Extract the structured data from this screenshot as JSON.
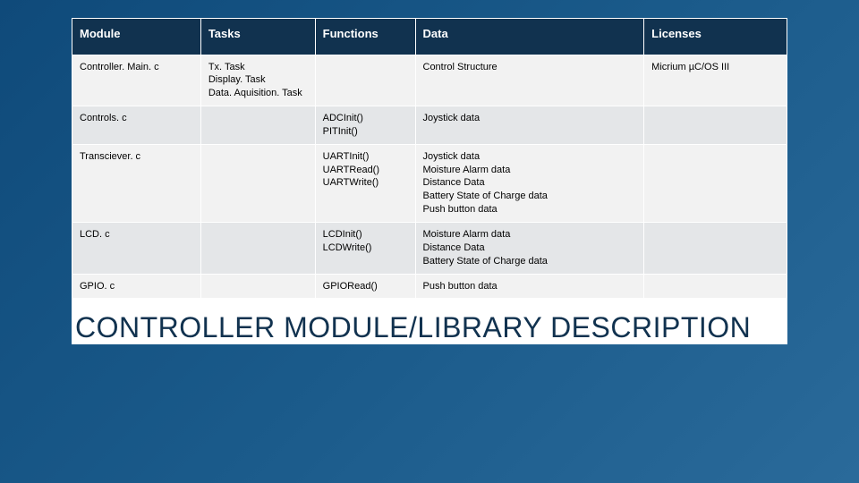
{
  "table": {
    "columns": [
      "Module",
      "Tasks",
      "Functions",
      "Data",
      "Licenses"
    ],
    "col_widths_pct": [
      18,
      16,
      14,
      32,
      20
    ],
    "header_bg": "#11324f",
    "header_fg": "#ffffff",
    "row_bg_odd": "#f2f2f2",
    "row_bg_even": "#e4e6e8",
    "border_color": "#ffffff",
    "header_fontsize": 13,
    "cell_fontsize": 11,
    "rows": [
      {
        "module": "Controller. Main. c",
        "tasks": [
          "Tx. Task",
          "Display. Task",
          "Data. Aquisition. Task"
        ],
        "functions": [],
        "data": [
          "Control Structure"
        ],
        "licenses": "Micrium µC/OS III"
      },
      {
        "module": "Controls. c",
        "tasks": [],
        "functions": [
          "ADCInit()",
          "PITInit()"
        ],
        "data": [
          "Joystick data"
        ],
        "licenses": ""
      },
      {
        "module": "Transciever. c",
        "tasks": [],
        "functions": [
          "UARTInit()",
          "UARTRead()",
          "UARTWrite()"
        ],
        "data": [
          "Joystick data",
          "Moisture Alarm data",
          "Distance Data",
          "Battery State of Charge data",
          "Push button data"
        ],
        "licenses": ""
      },
      {
        "module": "LCD. c",
        "tasks": [],
        "functions": [
          "LCDInit()",
          "LCDWrite()"
        ],
        "data": [
          "Moisture Alarm data",
          "Distance Data",
          "Battery State of Charge data"
        ],
        "licenses": ""
      },
      {
        "module": "GPIO. c",
        "tasks": [],
        "functions": [
          "GPIORead()"
        ],
        "data": [
          "Push button data"
        ],
        "licenses": ""
      }
    ]
  },
  "title": "CONTROLLER MODULE/LIBRARY DESCRIPTION",
  "title_color": "#11324f",
  "title_fontsize": 32,
  "background_gradient": [
    "#0f4a7a",
    "#1a5a8a",
    "#2a6a9a"
  ]
}
